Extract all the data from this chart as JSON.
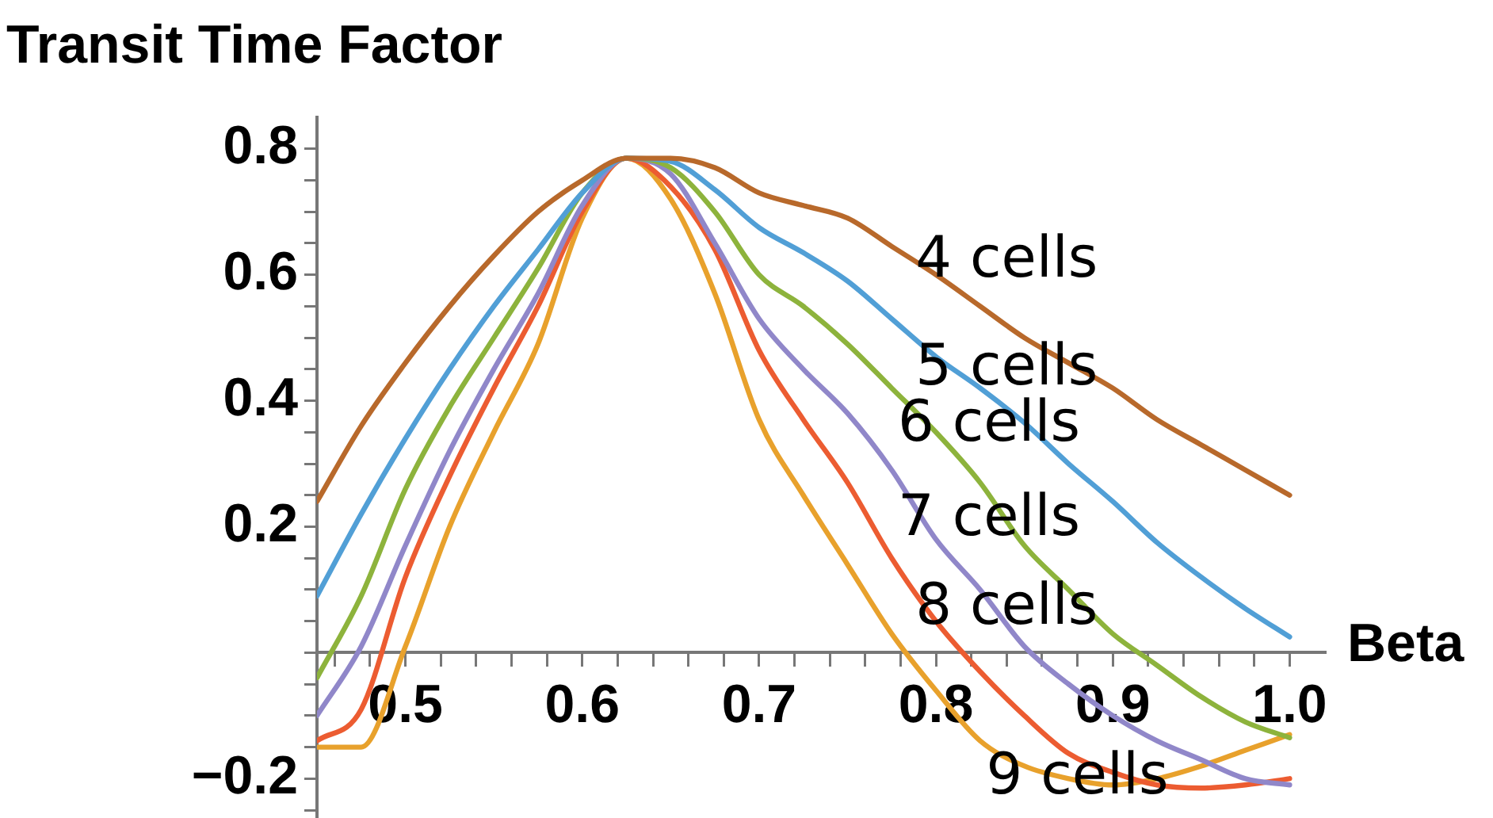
{
  "chart_data": {
    "type": "line",
    "ylabel": "Transit Time Factor",
    "xlabel": "Beta",
    "x": [
      0.45,
      0.475,
      0.5,
      0.525,
      0.55,
      0.575,
      0.6,
      0.625,
      0.65,
      0.675,
      0.7,
      0.725,
      0.75,
      0.775,
      0.8,
      0.825,
      0.85,
      0.875,
      0.9,
      0.925,
      0.95,
      0.975,
      1.0
    ],
    "series": [
      {
        "name": "4 cells",
        "color": "#b8692b",
        "values": [
          0.24,
          0.36,
          0.46,
          0.55,
          0.63,
          0.7,
          0.75,
          0.785,
          0.785,
          0.77,
          0.73,
          0.71,
          0.69,
          0.645,
          0.6,
          0.55,
          0.5,
          0.46,
          0.42,
          0.37,
          0.33,
          0.29,
          0.25
        ]
      },
      {
        "name": "5 cells",
        "color": "#519fd6",
        "values": [
          0.09,
          0.22,
          0.34,
          0.45,
          0.55,
          0.64,
          0.73,
          0.785,
          0.78,
          0.735,
          0.675,
          0.635,
          0.59,
          0.53,
          0.47,
          0.42,
          0.365,
          0.3,
          0.24,
          0.175,
          0.12,
          0.07,
          0.025
        ]
      },
      {
        "name": "6 cells",
        "color": "#8db33c",
        "values": [
          -0.04,
          0.09,
          0.26,
          0.39,
          0.5,
          0.61,
          0.73,
          0.785,
          0.77,
          0.7,
          0.6,
          0.55,
          0.49,
          0.42,
          0.35,
          0.27,
          0.17,
          0.1,
          0.03,
          -0.02,
          -0.07,
          -0.11,
          -0.135
        ]
      },
      {
        "name": "7 cells",
        "color": "#9087c9",
        "values": [
          -0.1,
          0.01,
          0.17,
          0.32,
          0.45,
          0.57,
          0.71,
          0.785,
          0.76,
          0.65,
          0.53,
          0.45,
          0.38,
          0.29,
          0.18,
          0.1,
          0.01,
          -0.05,
          -0.1,
          -0.14,
          -0.17,
          -0.2,
          -0.21
        ]
      },
      {
        "name": "8 cells",
        "color": "#ec5c31",
        "values": [
          -0.14,
          -0.09,
          0.12,
          0.28,
          0.42,
          0.55,
          0.7,
          0.785,
          0.74,
          0.64,
          0.48,
          0.37,
          0.27,
          0.15,
          0.05,
          -0.03,
          -0.1,
          -0.16,
          -0.19,
          -0.21,
          -0.215,
          -0.21,
          -0.2
        ]
      },
      {
        "name": "9 cells",
        "color": "#e8a12c",
        "values": [
          -0.15,
          -0.15,
          0.01,
          0.2,
          0.35,
          0.49,
          0.69,
          0.785,
          0.72,
          0.57,
          0.37,
          0.25,
          0.14,
          0.03,
          -0.06,
          -0.14,
          -0.18,
          -0.2,
          -0.21,
          -0.2,
          -0.18,
          -0.155,
          -0.13
        ]
      }
    ],
    "xlim": [
      0.45,
      1.02
    ],
    "ylim": [
      -0.26,
      0.85
    ],
    "xticks": [
      {
        "value": 0.46,
        "label": null
      },
      {
        "value": 0.48,
        "label": null
      },
      {
        "value": 0.5,
        "label": "0.5"
      },
      {
        "value": 0.52,
        "label": null
      },
      {
        "value": 0.54,
        "label": null
      },
      {
        "value": 0.56,
        "label": null
      },
      {
        "value": 0.58,
        "label": null
      },
      {
        "value": 0.6,
        "label": "0.6"
      },
      {
        "value": 0.62,
        "label": null
      },
      {
        "value": 0.64,
        "label": null
      },
      {
        "value": 0.66,
        "label": null
      },
      {
        "value": 0.68,
        "label": null
      },
      {
        "value": 0.7,
        "label": "0.7"
      },
      {
        "value": 0.72,
        "label": null
      },
      {
        "value": 0.74,
        "label": null
      },
      {
        "value": 0.76,
        "label": null
      },
      {
        "value": 0.78,
        "label": null
      },
      {
        "value": 0.8,
        "label": "0.8"
      },
      {
        "value": 0.82,
        "label": null
      },
      {
        "value": 0.84,
        "label": null
      },
      {
        "value": 0.86,
        "label": null
      },
      {
        "value": 0.88,
        "label": null
      },
      {
        "value": 0.9,
        "label": "0.9"
      },
      {
        "value": 0.92,
        "label": null
      },
      {
        "value": 0.94,
        "label": null
      },
      {
        "value": 0.96,
        "label": null
      },
      {
        "value": 0.98,
        "label": null
      },
      {
        "value": 1.0,
        "label": "1.0"
      }
    ],
    "yticks": [
      {
        "value": -0.25,
        "label": null
      },
      {
        "value": -0.2,
        "label": "−0.2"
      },
      {
        "value": -0.15,
        "label": null
      },
      {
        "value": -0.1,
        "label": null
      },
      {
        "value": -0.05,
        "label": null
      },
      {
        "value": 0,
        "label": null
      },
      {
        "value": 0.05,
        "label": null
      },
      {
        "value": 0.1,
        "label": null
      },
      {
        "value": 0.15,
        "label": null
      },
      {
        "value": 0.2,
        "label": "0.2"
      },
      {
        "value": 0.25,
        "label": null
      },
      {
        "value": 0.3,
        "label": null
      },
      {
        "value": 0.35,
        "label": null
      },
      {
        "value": 0.4,
        "label": "0.4"
      },
      {
        "value": 0.45,
        "label": null
      },
      {
        "value": 0.5,
        "label": null
      },
      {
        "value": 0.55,
        "label": null
      },
      {
        "value": 0.6,
        "label": "0.6"
      },
      {
        "value": 0.65,
        "label": null
      },
      {
        "value": 0.7,
        "label": null
      },
      {
        "value": 0.75,
        "label": null
      },
      {
        "value": 0.8,
        "label": "0.8"
      }
    ]
  }
}
